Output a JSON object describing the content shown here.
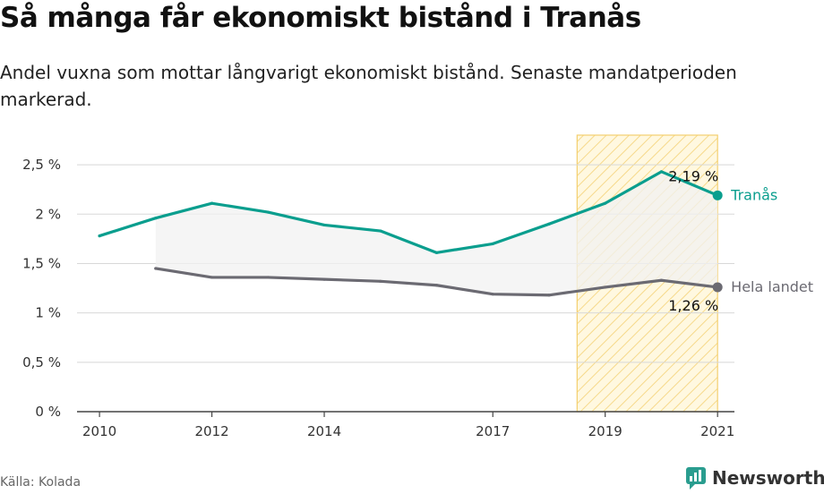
{
  "title": "Så många får ekonomiskt bistånd i Tranås",
  "subtitle": "Andel vuxna som mottar långvarigt ekonomiskt bistånd. Senaste mandatperioden markerad.",
  "source": "Källa: Kolada",
  "brand": "Newsworthy",
  "colors": {
    "local": "#0a9e8e",
    "national": "#6b6a72",
    "highlight_fill": "#fbe7a8",
    "highlight_stroke": "#f4cf6e",
    "between_fill": "#f2f2f2",
    "grid": "#d8d8d8",
    "brand": "#2a9d8f"
  },
  "chart_data": {
    "type": "line",
    "ylim": [
      0,
      2.8
    ],
    "xlim": [
      2009.6,
      2021.3
    ],
    "y_ticks": [
      {
        "value": 0,
        "label": "0 %"
      },
      {
        "value": 0.5,
        "label": "0,5 %"
      },
      {
        "value": 1,
        "label": "1 %"
      },
      {
        "value": 1.5,
        "label": "1,5 %"
      },
      {
        "value": 2,
        "label": "2 %"
      },
      {
        "value": 2.5,
        "label": "2,5 %"
      }
    ],
    "x_ticks": [
      {
        "value": 2010,
        "label": "2010"
      },
      {
        "value": 2012,
        "label": "2012"
      },
      {
        "value": 2014,
        "label": "2014"
      },
      {
        "value": 2017,
        "label": "2017"
      },
      {
        "value": 2019,
        "label": "2019"
      },
      {
        "value": 2021,
        "label": "2021"
      }
    ],
    "highlight_period": [
      2018.5,
      2021
    ],
    "grid": true,
    "series": [
      {
        "name": "Tranås",
        "key": "local",
        "x": [
          2010,
          2011,
          2012,
          2013,
          2014,
          2015,
          2016,
          2017,
          2018,
          2019,
          2020,
          2021
        ],
        "values": [
          1.78,
          1.96,
          2.11,
          2.02,
          1.89,
          1.83,
          1.61,
          1.7,
          1.9,
          2.11,
          2.43,
          2.19
        ],
        "end_label": "2,19 %"
      },
      {
        "name": "Hela landet",
        "key": "national",
        "x": [
          2011,
          2012,
          2013,
          2014,
          2015,
          2016,
          2017,
          2018,
          2019,
          2020,
          2021
        ],
        "values": [
          1.45,
          1.36,
          1.36,
          1.34,
          1.32,
          1.28,
          1.19,
          1.18,
          1.26,
          1.33,
          1.26
        ],
        "end_label": "1,26 %"
      }
    ]
  }
}
